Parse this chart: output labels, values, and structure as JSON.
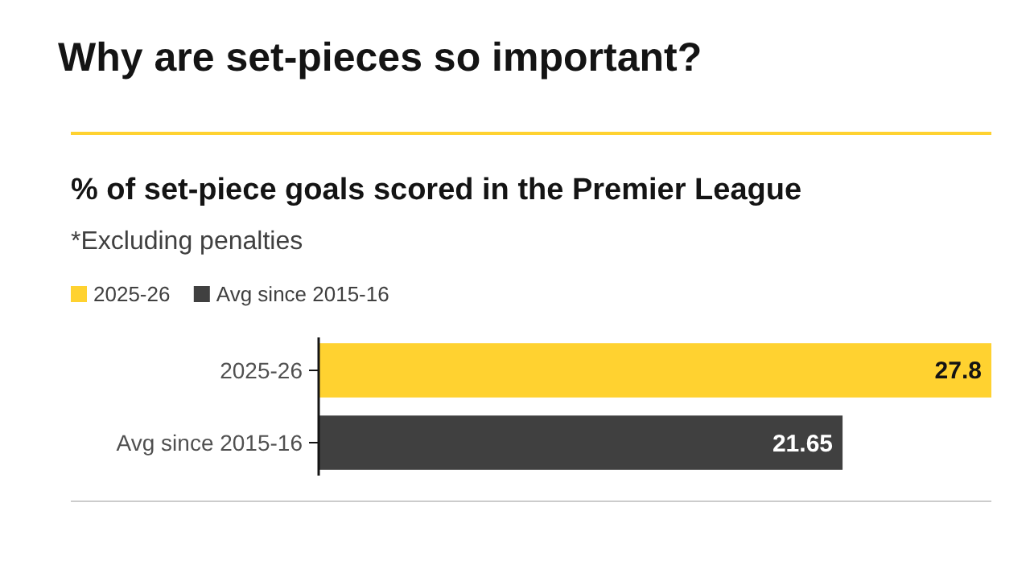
{
  "chart_data": {
    "type": "bar",
    "orientation": "horizontal",
    "title": "Why are set-pieces so important?",
    "subtitle": "% of set-piece goals scored in the Premier League",
    "annotations": [
      "*Excluding penalties"
    ],
    "categories": [
      "2025-26",
      "Avg since 2015-16"
    ],
    "series": [
      {
        "name": "2025-26",
        "color": "#ffd230",
        "values": [
          27.8,
          null
        ]
      },
      {
        "name": "Avg since 2015-16",
        "color": "#404040",
        "values": [
          null,
          21.65
        ]
      }
    ],
    "data_labels": true,
    "legend": "top"
  }
}
